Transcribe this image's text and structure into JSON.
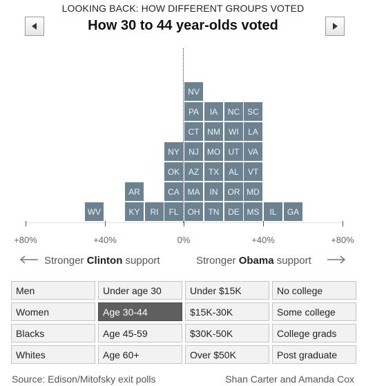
{
  "header": {
    "kicker": "LOOKING BACK: HOW DIFFERENT GROUPS VOTED",
    "title": "How 30 to 44 year-olds voted",
    "prev_icon": "left-triangle-icon",
    "next_icon": "right-triangle-icon"
  },
  "chart_data": {
    "type": "histogram",
    "bin_width": 10,
    "bin_unit": "percentage-point margin (negative = stronger Clinton, positive = stronger Obama)",
    "bins": [
      {
        "bin_start": -60,
        "bin_end": -50,
        "states": []
      },
      {
        "bin_start": -50,
        "bin_end": -40,
        "states": [
          "WV"
        ]
      },
      {
        "bin_start": -40,
        "bin_end": -30,
        "states": []
      },
      {
        "bin_start": -30,
        "bin_end": -20,
        "states": [
          "KY",
          "AR"
        ]
      },
      {
        "bin_start": -20,
        "bin_end": -10,
        "states": [
          "RI"
        ]
      },
      {
        "bin_start": -10,
        "bin_end": 0,
        "states": [
          "FL",
          "CA",
          "OK",
          "NY"
        ]
      },
      {
        "bin_start": 0,
        "bin_end": 10,
        "states": [
          "OH",
          "MA",
          "AZ",
          "NJ",
          "CT",
          "PA",
          "NV"
        ]
      },
      {
        "bin_start": 10,
        "bin_end": 20,
        "states": [
          "TN",
          "IN",
          "TX",
          "MO",
          "NM",
          "IA"
        ]
      },
      {
        "bin_start": 20,
        "bin_end": 30,
        "states": [
          "DE",
          "OR",
          "AL",
          "UT",
          "WI",
          "NC"
        ]
      },
      {
        "bin_start": 30,
        "bin_end": 40,
        "states": [
          "MS",
          "MD",
          "VT",
          "VA",
          "LA",
          "SC"
        ]
      },
      {
        "bin_start": 40,
        "bin_end": 50,
        "states": [
          "IL"
        ]
      },
      {
        "bin_start": 50,
        "bin_end": 60,
        "states": [
          "GA"
        ]
      }
    ],
    "xlim": [
      -80,
      80
    ],
    "xticks": [
      "+80%",
      "+40%",
      "0%",
      "+40%",
      "+80%"
    ],
    "tile_color": "#6d8290",
    "left_label_prefix": "Stronger",
    "left_label_name": "Clinton",
    "left_label_suffix": "support",
    "right_label_prefix": "Stronger",
    "right_label_name": "Obama",
    "right_label_suffix": "support"
  },
  "groups": [
    [
      "Men",
      "Women",
      "Blacks",
      "Whites"
    ],
    [
      "Under age 30",
      "Age 30-44",
      "Age 45-59",
      "Age 60+"
    ],
    [
      "Under $15K",
      "$15K-30K",
      "$30K-50K",
      "Over $50K"
    ],
    [
      "No college",
      "Some college",
      "College grads",
      "Post graduate"
    ]
  ],
  "selected_group": "Age 30-44",
  "selected_color": "#5f5f5f",
  "footer": {
    "source": "Source: Edison/Mitofsky exit polls",
    "credit": "Shan Carter and Amanda Cox"
  }
}
